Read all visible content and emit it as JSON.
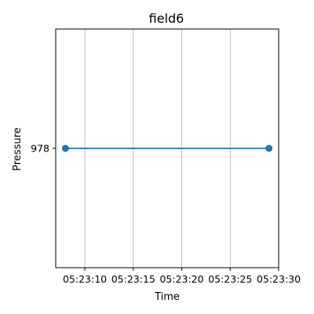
{
  "chart_data": {
    "type": "line",
    "title": "field6",
    "xlabel": "Time",
    "ylabel": "Pressure",
    "x_ticks": [
      "05:23:10",
      "05:23:15",
      "05:23:20",
      "05:23:25",
      "05:23:30"
    ],
    "y_ticks": [
      "978"
    ],
    "xlim": [
      "05:23:07",
      "05:23:30"
    ],
    "grid": "x",
    "series": [
      {
        "color": "#1f77b4",
        "x": [
          "05:23:08",
          "05:23:29"
        ],
        "y": [
          978,
          978
        ]
      }
    ]
  }
}
